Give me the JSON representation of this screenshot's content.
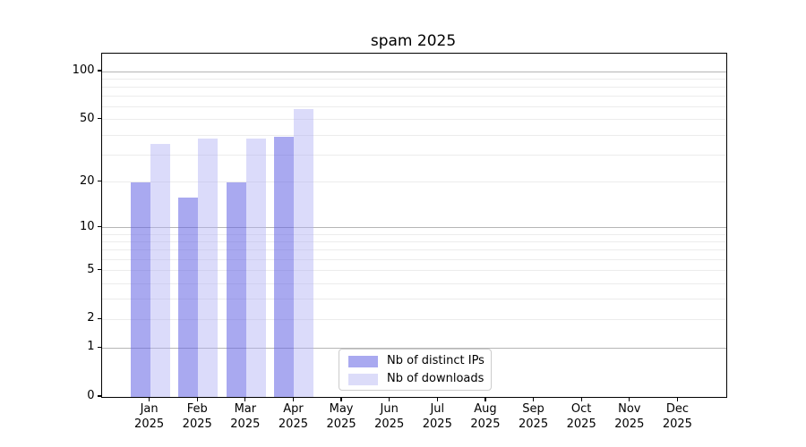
{
  "chart_data": {
    "type": "bar",
    "title": "spam 2025",
    "categories": [
      "Jan",
      "Feb",
      "Mar",
      "Apr",
      "May",
      "Jun",
      "Jul",
      "Aug",
      "Sep",
      "Oct",
      "Nov",
      "Dec"
    ],
    "category_year": "2025",
    "series": [
      {
        "name": "Nb of distinct IPs",
        "swatch_color": "#a9a9f0",
        "bar_fill": "rgba(99,99,228,0.55)",
        "values": [
          20,
          16,
          20,
          39,
          null,
          null,
          null,
          null,
          null,
          null,
          null,
          null
        ]
      },
      {
        "name": "Nb of downloads",
        "swatch_color": "#dcdcf9",
        "bar_fill": "rgba(175,175,244,0.45)",
        "values": [
          35,
          38,
          38,
          58,
          null,
          null,
          null,
          null,
          null,
          null,
          null,
          null
        ]
      }
    ],
    "yscale": "log1p",
    "ylim": [
      0,
      130
    ],
    "y_tick_labels": [
      "0",
      "1",
      "2",
      "5",
      "10",
      "20",
      "50",
      "100"
    ],
    "y_tick_values": [
      0,
      1,
      2,
      5,
      10,
      20,
      50,
      100
    ],
    "y_major_gridlines": [
      1,
      10,
      100
    ],
    "y_minor_gridlines": [
      2,
      3,
      4,
      5,
      6,
      7,
      8,
      9,
      20,
      30,
      40,
      50,
      60,
      70,
      80,
      90
    ],
    "grid": "horizontal",
    "legend_position": "lower center-left inside axes",
    "colors": {
      "grid_major": "#b6b6b6",
      "grid_minor": "#ececec",
      "spine": "#000000",
      "legend_border": "#cccccc"
    }
  }
}
